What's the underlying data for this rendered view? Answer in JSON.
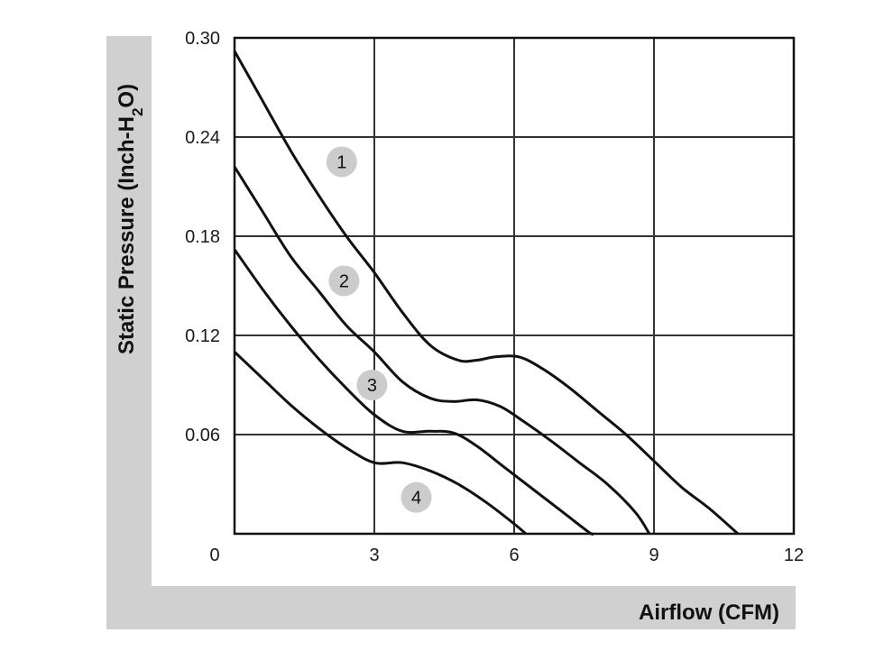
{
  "chart_data": {
    "type": "line",
    "xlabel": "Airflow (CFM)",
    "ylabel": {
      "prefix": "Static Pressure (Inch-H",
      "sub": "2",
      "suffix": "O)"
    },
    "xlim": [
      0,
      12
    ],
    "ylim": [
      0,
      0.3
    ],
    "x_ticks": [
      {
        "value": 0,
        "label": "0"
      },
      {
        "value": 3,
        "label": "3"
      },
      {
        "value": 6,
        "label": "6"
      },
      {
        "value": 9,
        "label": "9"
      },
      {
        "value": 12,
        "label": "12"
      }
    ],
    "y_ticks": [
      {
        "value": 0.06,
        "label": "0.06"
      },
      {
        "value": 0.12,
        "label": "0.12"
      },
      {
        "value": 0.18,
        "label": "0.18"
      },
      {
        "value": 0.24,
        "label": "0.24"
      },
      {
        "value": 0.3,
        "label": "0.30"
      }
    ],
    "grid": true,
    "colors": {
      "line": "#111111",
      "grid": "#333333",
      "badge": "#cccccc",
      "axis_band": "#d0d0d0"
    },
    "series": [
      {
        "label": "1",
        "label_at": [
          2.3,
          0.225
        ],
        "points": [
          [
            0,
            0.292
          ],
          [
            0.6,
            0.262
          ],
          [
            1.2,
            0.232
          ],
          [
            1.8,
            0.205
          ],
          [
            2.4,
            0.18
          ],
          [
            3.0,
            0.158
          ],
          [
            3.6,
            0.134
          ],
          [
            4.2,
            0.114
          ],
          [
            4.8,
            0.105
          ],
          [
            5.2,
            0.105
          ],
          [
            5.6,
            0.107
          ],
          [
            6.1,
            0.107
          ],
          [
            6.6,
            0.1
          ],
          [
            7.2,
            0.088
          ],
          [
            7.8,
            0.074
          ],
          [
            8.4,
            0.06
          ],
          [
            9.0,
            0.044
          ],
          [
            9.6,
            0.028
          ],
          [
            10.2,
            0.015
          ],
          [
            10.8,
            0
          ]
        ]
      },
      {
        "label": "2",
        "label_at": [
          2.35,
          0.153
        ],
        "points": [
          [
            0,
            0.222
          ],
          [
            0.6,
            0.195
          ],
          [
            1.2,
            0.168
          ],
          [
            1.8,
            0.147
          ],
          [
            2.4,
            0.126
          ],
          [
            3.0,
            0.11
          ],
          [
            3.6,
            0.092
          ],
          [
            4.2,
            0.082
          ],
          [
            4.7,
            0.08
          ],
          [
            5.2,
            0.081
          ],
          [
            5.7,
            0.077
          ],
          [
            6.2,
            0.068
          ],
          [
            6.8,
            0.056
          ],
          [
            7.4,
            0.043
          ],
          [
            8.0,
            0.03
          ],
          [
            8.6,
            0.013
          ],
          [
            8.9,
            0
          ]
        ]
      },
      {
        "label": "3",
        "label_at": [
          2.95,
          0.09
        ],
        "points": [
          [
            0,
            0.172
          ],
          [
            0.6,
            0.148
          ],
          [
            1.2,
            0.126
          ],
          [
            1.8,
            0.106
          ],
          [
            2.4,
            0.088
          ],
          [
            3.0,
            0.072
          ],
          [
            3.6,
            0.062
          ],
          [
            4.2,
            0.062
          ],
          [
            4.7,
            0.061
          ],
          [
            5.2,
            0.053
          ],
          [
            5.8,
            0.04
          ],
          [
            6.4,
            0.027
          ],
          [
            7.0,
            0.014
          ],
          [
            7.6,
            0.001
          ],
          [
            7.7,
            0
          ]
        ]
      },
      {
        "label": "4",
        "label_at": [
          3.9,
          0.022
        ],
        "points": [
          [
            0,
            0.11
          ],
          [
            0.6,
            0.094
          ],
          [
            1.2,
            0.078
          ],
          [
            1.8,
            0.064
          ],
          [
            2.4,
            0.052
          ],
          [
            3.0,
            0.043
          ],
          [
            3.6,
            0.043
          ],
          [
            4.2,
            0.038
          ],
          [
            4.8,
            0.03
          ],
          [
            5.4,
            0.019
          ],
          [
            6.0,
            0.006
          ],
          [
            6.25,
            0
          ]
        ]
      }
    ]
  }
}
